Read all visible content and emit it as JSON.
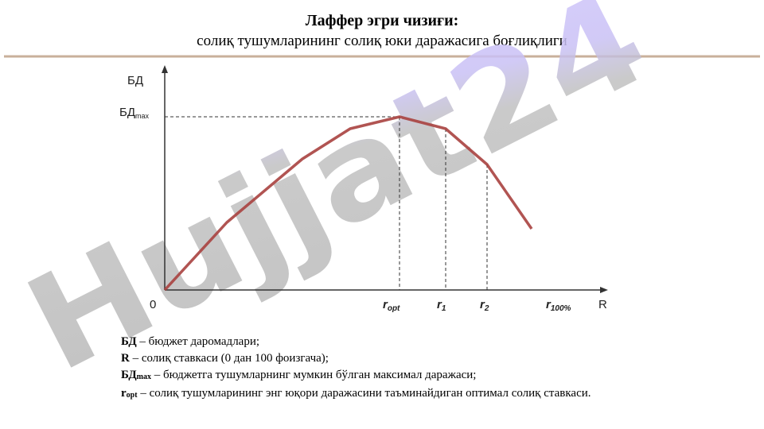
{
  "header": {
    "title": "Лаффер эгри чизиғи:",
    "subtitle": "солиқ тушумларининг солиқ юки даражасига боғлиқлиги"
  },
  "diagram": {
    "y_axis": "БД",
    "y_max_label": {
      "main": "БД",
      "sub": "max"
    },
    "origin": "0",
    "x_axis": "R",
    "x_labels": [
      {
        "main": "r",
        "sub": "opt"
      },
      {
        "main": "r",
        "sub": "1"
      },
      {
        "main": "r",
        "sub": "2"
      },
      {
        "main": "r",
        "sub": "100%"
      }
    ]
  },
  "legend": [
    {
      "term": {
        "main": "БД"
      },
      "text": " – бюджет даромадлари;"
    },
    {
      "term": {
        "main": "R"
      },
      "text": " – солиқ ставкаси (0 дан 100 фоизгача);"
    },
    {
      "term": {
        "main": "БД",
        "sub": "max"
      },
      "text": " – бюджетга тушумларнинг мумкин бўлган максимал даражаси;"
    },
    {
      "term": {
        "main": "r",
        "sub": "opt"
      },
      "text": " – солиқ тушумларининг энг юқори даражасини таъминайдиган оптимал солиқ ставкаси."
    }
  ],
  "watermark": "Hujjat24"
}
